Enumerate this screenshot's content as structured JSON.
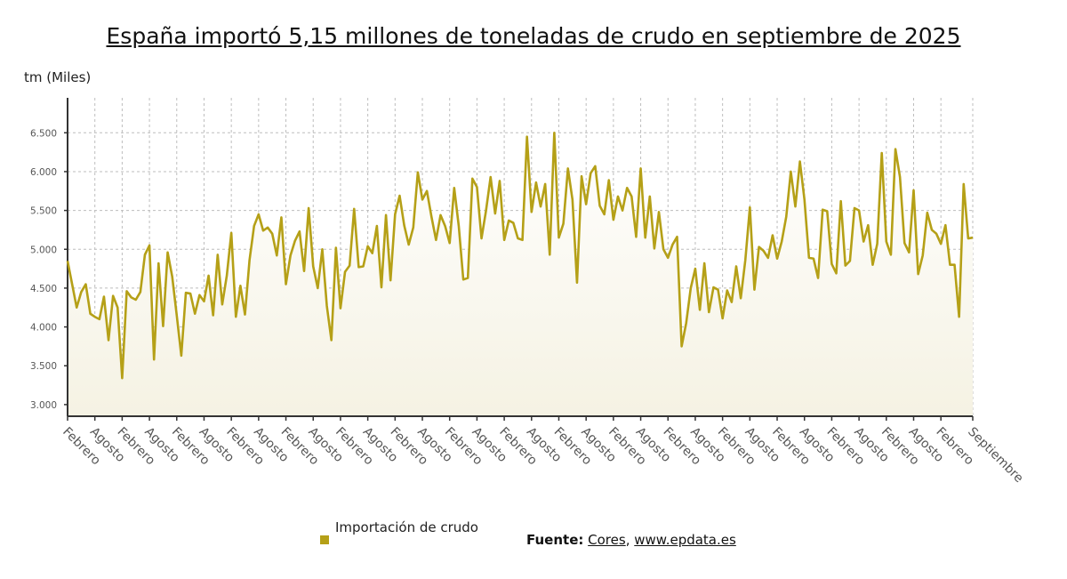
{
  "header": {
    "title": "España importó 5,15 millones de toneladas de crudo en septiembre de 2025",
    "y_unit": "tm (Miles)"
  },
  "legend": {
    "label": "Importación de crudo",
    "color": "#b5a017"
  },
  "source": {
    "prefix": "Fuente:",
    "links": [
      "Cores",
      "www.epdata.es"
    ],
    "separator": ","
  },
  "colors": {
    "line": "#b5a017",
    "fill_top": "#ffffff",
    "fill_bottom": "#f5f2e3",
    "grid": "#bdbdbd",
    "axis": "#333333"
  },
  "chart_data": {
    "type": "line",
    "title": "España importó 5,15 millones de toneladas de crudo en septiembre de 2025",
    "xlabel": "",
    "ylabel": "tm (Miles)",
    "ylim": [
      2850,
      6950
    ],
    "yticks": [
      3000,
      3500,
      4000,
      4500,
      5000,
      5500,
      6000,
      6500
    ],
    "ytick_labels": [
      "3.000",
      "3.500",
      "4.000",
      "4.500",
      "5.000",
      "5.500",
      "6.000",
      "6.500"
    ],
    "grid": true,
    "legend_position": "bottom-left",
    "x_start": "2009-02",
    "x_end": "2025-09",
    "x_tick_labels": [
      "Febrero",
      "Agosto",
      "Febrero",
      "Agosto",
      "Febrero",
      "Agosto",
      "Febrero",
      "Agosto",
      "Febrero",
      "Agosto",
      "Febrero",
      "Agosto",
      "Febrero",
      "Agosto",
      "Febrero",
      "Agosto",
      "Febrero",
      "Agosto",
      "Febrero",
      "Agosto",
      "Febrero",
      "Agosto",
      "Febrero",
      "Agosto",
      "Febrero",
      "Agosto",
      "Febrero",
      "Agosto",
      "Febrero",
      "Agosto",
      "Febrero",
      "Agosto",
      "Febrero",
      "Septiembre"
    ],
    "series": [
      {
        "name": "Importación de crudo",
        "values": [
          4850,
          4550,
          4250,
          4450,
          4550,
          4170,
          4130,
          4100,
          4390,
          3830,
          4400,
          4250,
          3340,
          4460,
          4380,
          4350,
          4450,
          4930,
          5050,
          3580,
          4820,
          4010,
          4960,
          4650,
          4150,
          3630,
          4440,
          4430,
          4170,
          4410,
          4330,
          4660,
          4150,
          4930,
          4290,
          4660,
          5210,
          4130,
          4530,
          4160,
          4860,
          5300,
          5450,
          5240,
          5280,
          5200,
          4920,
          5410,
          4550,
          4920,
          5110,
          5230,
          4720,
          5530,
          4780,
          4500,
          5000,
          4270,
          3830,
          5020,
          4240,
          4710,
          4790,
          5520,
          4770,
          4780,
          5040,
          4950,
          5300,
          4510,
          5440,
          4600,
          5450,
          5690,
          5310,
          5060,
          5280,
          5990,
          5640,
          5750,
          5420,
          5120,
          5440,
          5300,
          5080,
          5790,
          5300,
          4610,
          4630,
          5910,
          5800,
          5140,
          5500,
          5930,
          5460,
          5880,
          5120,
          5370,
          5340,
          5140,
          5120,
          6450,
          5480,
          5860,
          5550,
          5840,
          4930,
          6500,
          5150,
          5330,
          6040,
          5640,
          4570,
          5940,
          5580,
          5980,
          6070,
          5560,
          5450,
          5890,
          5380,
          5680,
          5500,
          5790,
          5680,
          5160,
          6040,
          5150,
          5680,
          5010,
          5480,
          5000,
          4890,
          5060,
          5160,
          3750,
          4050,
          4500,
          4750,
          4220,
          4820,
          4190,
          4510,
          4480,
          4110,
          4470,
          4320,
          4780,
          4370,
          4860,
          5540,
          4480,
          5030,
          4980,
          4890,
          5180,
          4880,
          5100,
          5420,
          6000,
          5550,
          6130,
          5640,
          4890,
          4880,
          4630,
          5510,
          5490,
          4810,
          4690,
          5620,
          4790,
          4850,
          5530,
          5500,
          5100,
          5310,
          4800,
          5070,
          6240,
          5100,
          4930,
          6290,
          5930,
          5080,
          4960,
          5760,
          4680,
          4920,
          5470,
          5250,
          5200,
          5070,
          5310,
          4800,
          4800,
          4130,
          5840,
          5140,
          5150
        ]
      }
    ]
  }
}
